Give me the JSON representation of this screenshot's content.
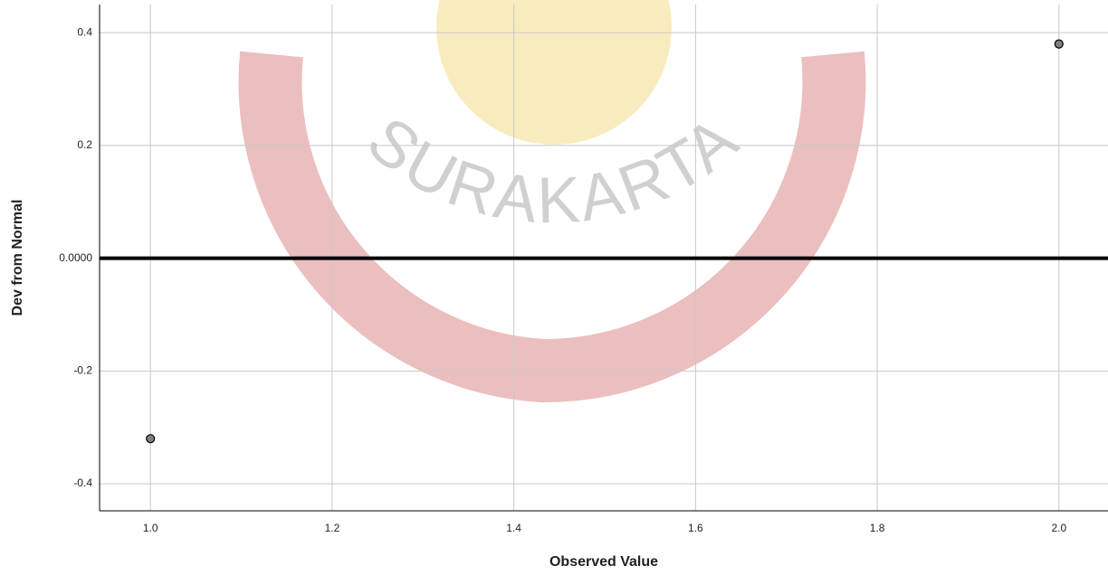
{
  "chart_data": {
    "type": "scatter",
    "x_label": "Observed Value",
    "y_label": "Dev from Normal",
    "watermark": "SURAKARTA",
    "x": [
      1.0,
      2.0
    ],
    "values": [
      -0.32,
      0.38
    ],
    "color": "#808080",
    "xlim": [
      0.944,
      2.054
    ],
    "ylim": [
      -0.448,
      0.45
    ],
    "xticks": [
      {
        "value": 1,
        "label": "1.0"
      },
      1.2,
      1.4,
      1.6,
      1.8,
      {
        "value": 2,
        "label": "2.0"
      }
    ],
    "yticks": [
      -0.4,
      -0.2,
      {
        "value": 0,
        "label": "0.0000"
      },
      0.2,
      0.4
    ],
    "reference_line": 0,
    "grid": true
  }
}
